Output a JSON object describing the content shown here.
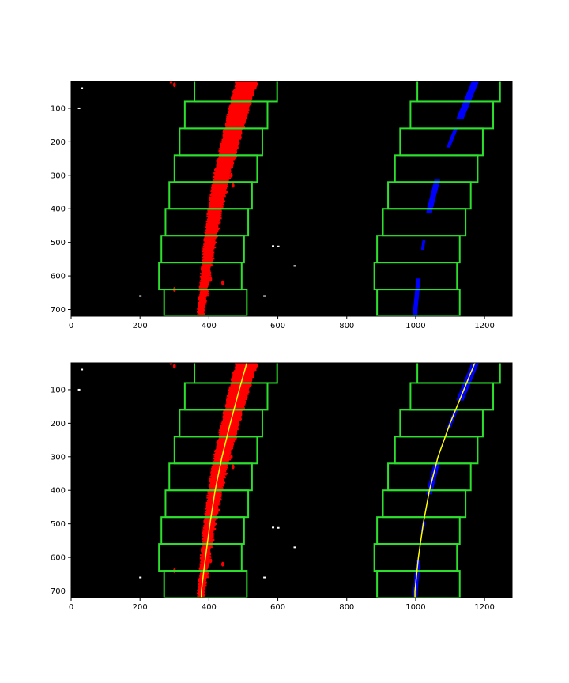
{
  "figure": {
    "description": "Sliding window lane line detection",
    "colors": {
      "background": "#000000",
      "window": "#2de02d",
      "left_lane_pixels": "#ff0000",
      "right_lane_pixels": "#0000ff",
      "fit_line": "#ffff00",
      "noise": "#ffffff",
      "axis": "#000000"
    }
  },
  "chart_data": [
    {
      "type": "scatter",
      "title": "",
      "panel": "top",
      "xlabel": "",
      "ylabel": "",
      "xlim": [
        0,
        1280
      ],
      "ylim": [
        720,
        20
      ],
      "x_ticks": [
        0,
        200,
        400,
        600,
        800,
        1000,
        1200
      ],
      "y_ticks": [
        100,
        200,
        300,
        400,
        500,
        600,
        700
      ],
      "x_tick_labels": [
        "0",
        "200",
        "400",
        "600",
        "800",
        "1000",
        "1200"
      ],
      "y_tick_labels": [
        "100",
        "200",
        "300",
        "400",
        "500",
        "600",
        "700"
      ],
      "show_fit": false,
      "windows": {
        "left": [
          {
            "x1": 270,
            "x2": 510,
            "y1": 640,
            "y2": 720
          },
          {
            "x1": 255,
            "x2": 495,
            "y1": 560,
            "y2": 640
          },
          {
            "x1": 262,
            "x2": 502,
            "y1": 480,
            "y2": 560
          },
          {
            "x1": 274,
            "x2": 514,
            "y1": 400,
            "y2": 480
          },
          {
            "x1": 285,
            "x2": 525,
            "y1": 320,
            "y2": 400
          },
          {
            "x1": 300,
            "x2": 540,
            "y1": 240,
            "y2": 320
          },
          {
            "x1": 315,
            "x2": 555,
            "y1": 160,
            "y2": 240
          },
          {
            "x1": 330,
            "x2": 570,
            "y1": 80,
            "y2": 160
          },
          {
            "x1": 358,
            "x2": 598,
            "y1": 0,
            "y2": 80
          }
        ],
        "right": [
          {
            "x1": 888,
            "x2": 1128,
            "y1": 640,
            "y2": 720
          },
          {
            "x1": 880,
            "x2": 1120,
            "y1": 560,
            "y2": 640
          },
          {
            "x1": 888,
            "x2": 1128,
            "y1": 480,
            "y2": 560
          },
          {
            "x1": 905,
            "x2": 1145,
            "y1": 400,
            "y2": 480
          },
          {
            "x1": 920,
            "x2": 1160,
            "y1": 320,
            "y2": 400
          },
          {
            "x1": 940,
            "x2": 1180,
            "y1": 240,
            "y2": 320
          },
          {
            "x1": 955,
            "x2": 1195,
            "y1": 160,
            "y2": 240
          },
          {
            "x1": 985,
            "x2": 1225,
            "y1": 80,
            "y2": 160
          },
          {
            "x1": 1005,
            "x2": 1245,
            "y1": 0,
            "y2": 80
          }
        ]
      }
    },
    {
      "type": "scatter",
      "title": "",
      "panel": "bottom",
      "xlabel": "",
      "ylabel": "",
      "xlim": [
        0,
        1280
      ],
      "ylim": [
        720,
        20
      ],
      "x_ticks": [
        0,
        200,
        400,
        600,
        800,
        1000,
        1200
      ],
      "y_ticks": [
        100,
        200,
        300,
        400,
        500,
        600,
        700
      ],
      "x_tick_labels": [
        "0",
        "200",
        "400",
        "600",
        "800",
        "1000",
        "1200"
      ],
      "y_tick_labels": [
        "100",
        "200",
        "300",
        "400",
        "500",
        "600",
        "700"
      ],
      "show_fit": true,
      "windows": {
        "left": [
          {
            "x1": 270,
            "x2": 510,
            "y1": 640,
            "y2": 720
          },
          {
            "x1": 255,
            "x2": 495,
            "y1": 560,
            "y2": 640
          },
          {
            "x1": 262,
            "x2": 502,
            "y1": 480,
            "y2": 560
          },
          {
            "x1": 274,
            "x2": 514,
            "y1": 400,
            "y2": 480
          },
          {
            "x1": 285,
            "x2": 525,
            "y1": 320,
            "y2": 400
          },
          {
            "x1": 300,
            "x2": 540,
            "y1": 240,
            "y2": 320
          },
          {
            "x1": 315,
            "x2": 555,
            "y1": 160,
            "y2": 240
          },
          {
            "x1": 330,
            "x2": 570,
            "y1": 80,
            "y2": 160
          },
          {
            "x1": 358,
            "x2": 598,
            "y1": 0,
            "y2": 80
          }
        ],
        "right": [
          {
            "x1": 888,
            "x2": 1128,
            "y1": 640,
            "y2": 720
          },
          {
            "x1": 880,
            "x2": 1120,
            "y1": 560,
            "y2": 640
          },
          {
            "x1": 888,
            "x2": 1128,
            "y1": 480,
            "y2": 560
          },
          {
            "x1": 905,
            "x2": 1145,
            "y1": 400,
            "y2": 480
          },
          {
            "x1": 920,
            "x2": 1160,
            "y1": 320,
            "y2": 400
          },
          {
            "x1": 940,
            "x2": 1180,
            "y1": 240,
            "y2": 320
          },
          {
            "x1": 955,
            "x2": 1195,
            "y1": 160,
            "y2": 240
          },
          {
            "x1": 985,
            "x2": 1225,
            "y1": 80,
            "y2": 160
          },
          {
            "x1": 1005,
            "x2": 1245,
            "y1": 0,
            "y2": 80
          }
        ]
      }
    }
  ],
  "lane_fits": {
    "left": {
      "y": [
        20,
        100,
        200,
        300,
        400,
        500,
        600,
        700
      ],
      "x": [
        510,
        488,
        462,
        438,
        418,
        403,
        390,
        378
      ]
    },
    "right": {
      "y": [
        20,
        100,
        200,
        300,
        400,
        500,
        600,
        700
      ],
      "x": [
        1172,
        1140,
        1100,
        1065,
        1040,
        1022,
        1008,
        998
      ]
    }
  },
  "noise_points": [
    {
      "x": 30,
      "y": 40
    },
    {
      "x": 22,
      "y": 100
    },
    {
      "x": 585,
      "y": 511
    },
    {
      "x": 600,
      "y": 512
    },
    {
      "x": 648,
      "y": 570
    },
    {
      "x": 200,
      "y": 660
    },
    {
      "x": 560,
      "y": 660
    }
  ]
}
